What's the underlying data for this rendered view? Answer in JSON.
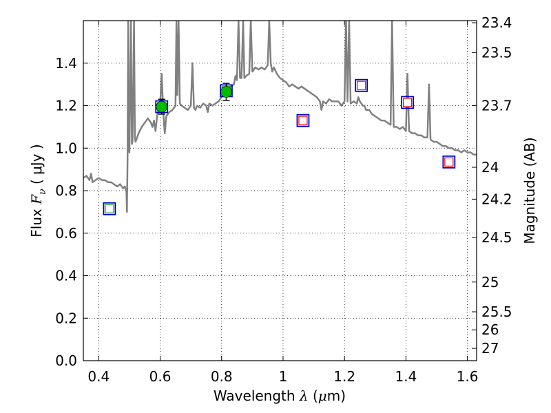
{
  "chart_data": {
    "type": "line",
    "xlabel": {
      "prefix": "Wavelength  ",
      "symbol": "λ",
      "unit_open": " (",
      "unit_mu": "μ",
      "unit_close": "m)"
    },
    "ylabel": {
      "prefix": "Flux  ",
      "symbol": "F",
      "subscript": "ν",
      "unit": "  ( μJy )"
    },
    "y2label": "Magnitude (AB)",
    "xlim": [
      0.35,
      1.63
    ],
    "ylim": [
      0.0,
      1.6
    ],
    "grid": true,
    "x_ticks": [
      {
        "value": 0.4,
        "label": "0.4"
      },
      {
        "value": 0.6,
        "label": "0.6"
      },
      {
        "value": 0.8,
        "label": "0.8"
      },
      {
        "value": 1.0,
        "label": "1"
      },
      {
        "value": 1.2,
        "label": "1.2"
      },
      {
        "value": 1.4,
        "label": "1.4"
      },
      {
        "value": 1.6,
        "label": "1.6"
      }
    ],
    "y_ticks": [
      {
        "value": 0.0,
        "label": "0.0"
      },
      {
        "value": 0.2,
        "label": "0.2"
      },
      {
        "value": 0.4,
        "label": "0.4"
      },
      {
        "value": 0.6,
        "label": "0.6"
      },
      {
        "value": 0.8,
        "label": "0.8"
      },
      {
        "value": 1.0,
        "label": "1.0"
      },
      {
        "value": 1.2,
        "label": "1.2"
      },
      {
        "value": 1.4,
        "label": "1.4"
      }
    ],
    "y2_ticks": [
      {
        "flux": 1.59,
        "label": "23.4"
      },
      {
        "flux": 1.45,
        "label": "23.5"
      },
      {
        "flux": 1.2,
        "label": "23.7"
      },
      {
        "flux": 0.91,
        "label": "24"
      },
      {
        "flux": 0.76,
        "label": "24.2"
      },
      {
        "flux": 0.58,
        "label": "24.5"
      },
      {
        "flux": 0.37,
        "label": "25"
      },
      {
        "flux": 0.23,
        "label": "25.5"
      },
      {
        "flux": 0.145,
        "label": "26"
      },
      {
        "flux": 0.058,
        "label": "27"
      }
    ],
    "colors": {
      "spectrum": "#808080",
      "box_outer": "#0000cc",
      "box_inner_green": "#00aa00",
      "box_inner_red": "#ff0000",
      "measured": "#00bb00"
    },
    "spectrum": [
      [
        0.35,
        0.86
      ],
      [
        0.36,
        0.87
      ],
      [
        0.365,
        0.86
      ],
      [
        0.37,
        0.85
      ],
      [
        0.375,
        0.88
      ],
      [
        0.38,
        0.84
      ],
      [
        0.39,
        0.85
      ],
      [
        0.4,
        0.86
      ],
      [
        0.41,
        0.85
      ],
      [
        0.42,
        0.85
      ],
      [
        0.43,
        0.84
      ],
      [
        0.44,
        0.84
      ],
      [
        0.45,
        0.83
      ],
      [
        0.46,
        0.82
      ],
      [
        0.47,
        0.83
      ],
      [
        0.48,
        0.81
      ],
      [
        0.485,
        0.82
      ],
      [
        0.49,
        0.8
      ],
      [
        0.492,
        0.7
      ],
      [
        0.494,
        0.95
      ],
      [
        0.496,
        1.6
      ],
      [
        0.498,
        1.0
      ],
      [
        0.5,
        0.98
      ],
      [
        0.505,
        1.6
      ],
      [
        0.508,
        1.02
      ],
      [
        0.51,
        1.03
      ],
      [
        0.515,
        1.6
      ],
      [
        0.518,
        1.05
      ],
      [
        0.52,
        1.03
      ],
      [
        0.53,
        1.07
      ],
      [
        0.54,
        1.1
      ],
      [
        0.55,
        1.12
      ],
      [
        0.56,
        1.14
      ],
      [
        0.57,
        1.12
      ],
      [
        0.575,
        1.1
      ],
      [
        0.58,
        1.13
      ],
      [
        0.585,
        1.08
      ],
      [
        0.59,
        1.15
      ],
      [
        0.595,
        1.18
      ],
      [
        0.6,
        1.2
      ],
      [
        0.605,
        1.35
      ],
      [
        0.61,
        1.17
      ],
      [
        0.615,
        1.07
      ],
      [
        0.62,
        1.15
      ],
      [
        0.63,
        1.17
      ],
      [
        0.64,
        1.18
      ],
      [
        0.645,
        1.19
      ],
      [
        0.65,
        1.2
      ],
      [
        0.653,
        1.6
      ],
      [
        0.656,
        1.25
      ],
      [
        0.66,
        1.6
      ],
      [
        0.664,
        1.21
      ],
      [
        0.67,
        1.2
      ],
      [
        0.68,
        1.19
      ],
      [
        0.69,
        1.18
      ],
      [
        0.7,
        1.2
      ],
      [
        0.705,
        1.4
      ],
      [
        0.71,
        1.19
      ],
      [
        0.715,
        1.18
      ],
      [
        0.72,
        1.2
      ],
      [
        0.73,
        1.19
      ],
      [
        0.74,
        1.21
      ],
      [
        0.75,
        1.2
      ],
      [
        0.755,
        1.17
      ],
      [
        0.76,
        1.21
      ],
      [
        0.77,
        1.2
      ],
      [
        0.78,
        1.21
      ],
      [
        0.79,
        1.22
      ],
      [
        0.8,
        1.24
      ],
      [
        0.81,
        1.26
      ],
      [
        0.82,
        1.28
      ],
      [
        0.83,
        1.29
      ],
      [
        0.84,
        1.3
      ],
      [
        0.845,
        1.34
      ],
      [
        0.85,
        1.32
      ],
      [
        0.855,
        1.6
      ],
      [
        0.86,
        1.33
      ],
      [
        0.865,
        1.33
      ],
      [
        0.87,
        1.6
      ],
      [
        0.874,
        1.33
      ],
      [
        0.88,
        1.34
      ],
      [
        0.89,
        1.35
      ],
      [
        0.895,
        1.6
      ],
      [
        0.9,
        1.36
      ],
      [
        0.91,
        1.38
      ],
      [
        0.92,
        1.37
      ],
      [
        0.93,
        1.38
      ],
      [
        0.94,
        1.37
      ],
      [
        0.95,
        1.39
      ],
      [
        0.955,
        1.6
      ],
      [
        0.96,
        1.4
      ],
      [
        0.965,
        1.36
      ],
      [
        0.97,
        1.38
      ],
      [
        0.98,
        1.35
      ],
      [
        0.99,
        1.33
      ],
      [
        1.0,
        1.32
      ],
      [
        1.01,
        1.31
      ],
      [
        1.02,
        1.29
      ],
      [
        1.03,
        1.3
      ],
      [
        1.04,
        1.29
      ],
      [
        1.05,
        1.28
      ],
      [
        1.06,
        1.29
      ],
      [
        1.07,
        1.28
      ],
      [
        1.08,
        1.27
      ],
      [
        1.09,
        1.26
      ],
      [
        1.1,
        1.25
      ],
      [
        1.11,
        1.24
      ],
      [
        1.12,
        1.22
      ],
      [
        1.125,
        1.18
      ],
      [
        1.13,
        1.22
      ],
      [
        1.14,
        1.21
      ],
      [
        1.15,
        1.23
      ],
      [
        1.16,
        1.22
      ],
      [
        1.17,
        1.22
      ],
      [
        1.18,
        1.22
      ],
      [
        1.19,
        1.2
      ],
      [
        1.2,
        1.22
      ],
      [
        1.205,
        1.6
      ],
      [
        1.21,
        1.22
      ],
      [
        1.215,
        1.6
      ],
      [
        1.22,
        1.21
      ],
      [
        1.23,
        1.22
      ],
      [
        1.24,
        1.21
      ],
      [
        1.245,
        1.24
      ],
      [
        1.25,
        1.22
      ],
      [
        1.26,
        1.2
      ],
      [
        1.265,
        1.2
      ],
      [
        1.27,
        1.18
      ],
      [
        1.28,
        1.18
      ],
      [
        1.29,
        1.16
      ],
      [
        1.3,
        1.15
      ],
      [
        1.31,
        1.14
      ],
      [
        1.32,
        1.13
      ],
      [
        1.33,
        1.13
      ],
      [
        1.34,
        1.12
      ],
      [
        1.35,
        1.11
      ],
      [
        1.355,
        1.6
      ],
      [
        1.36,
        1.1
      ],
      [
        1.37,
        1.1
      ],
      [
        1.38,
        1.09
      ],
      [
        1.39,
        1.1
      ],
      [
        1.4,
        1.08
      ],
      [
        1.405,
        1.35
      ],
      [
        1.41,
        1.08
      ],
      [
        1.42,
        1.07
      ],
      [
        1.43,
        1.07
      ],
      [
        1.44,
        1.06
      ],
      [
        1.45,
        1.06
      ],
      [
        1.46,
        1.05
      ],
      [
        1.47,
        1.05
      ],
      [
        1.475,
        1.3
      ],
      [
        1.48,
        1.04
      ],
      [
        1.49,
        1.03
      ],
      [
        1.5,
        1.03
      ],
      [
        1.51,
        1.02
      ],
      [
        1.52,
        1.01
      ],
      [
        1.53,
        1.01
      ],
      [
        1.54,
        1.0
      ],
      [
        1.55,
        1.0
      ],
      [
        1.56,
        0.99
      ],
      [
        1.57,
        0.99
      ],
      [
        1.58,
        0.98
      ],
      [
        1.59,
        0.99
      ],
      [
        1.6,
        0.98
      ],
      [
        1.61,
        0.98
      ],
      [
        1.62,
        0.97
      ],
      [
        1.63,
        0.97
      ]
    ],
    "boxes": [
      {
        "x": 0.435,
        "y": 0.715,
        "inner": "green"
      },
      {
        "x": 0.605,
        "y": 1.195,
        "inner": "green"
      },
      {
        "x": 0.815,
        "y": 1.27,
        "inner": "green"
      },
      {
        "x": 1.065,
        "y": 1.13,
        "inner": "red"
      },
      {
        "x": 1.255,
        "y": 1.295,
        "inner": "red"
      },
      {
        "x": 1.405,
        "y": 1.215,
        "inner": "red"
      },
      {
        "x": 1.54,
        "y": 0.935,
        "inner": "red"
      }
    ],
    "measurements": [
      {
        "x": 0.605,
        "y": 1.195,
        "yerr": 0.035
      },
      {
        "x": 0.815,
        "y": 1.265,
        "yerr": 0.04
      }
    ]
  }
}
